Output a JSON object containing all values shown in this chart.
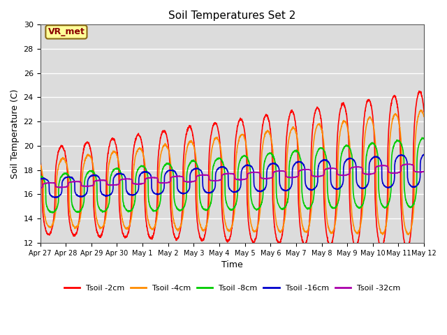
{
  "title": "Soil Temperatures Set 2",
  "xlabel": "Time",
  "ylabel": "Soil Temperature (C)",
  "ylim": [
    12,
    30
  ],
  "yticks": [
    12,
    14,
    16,
    18,
    20,
    22,
    24,
    26,
    28,
    30
  ],
  "annotation_text": "VR_met",
  "annotation_color": "#8B0000",
  "annotation_bg": "#FFFF99",
  "annotation_border": "#8B6914",
  "plot_bg": "#DCDCDC",
  "grid_color": "#FFFFFF",
  "series": [
    {
      "label": "Tsoil -2cm",
      "color": "#FF0000",
      "lw": 1.2
    },
    {
      "label": "Tsoil -4cm",
      "color": "#FF8C00",
      "lw": 1.2
    },
    {
      "label": "Tsoil -8cm",
      "color": "#00CC00",
      "lw": 1.2
    },
    {
      "label": "Tsoil -16cm",
      "color": "#0000CC",
      "lw": 1.2
    },
    {
      "label": "Tsoil -32cm",
      "color": "#AA00AA",
      "lw": 1.2
    }
  ],
  "tick_labels": [
    "Apr 27",
    "Apr 28",
    "Apr 29",
    "Apr 30",
    "May 1",
    "May 2",
    "May 3",
    "May 4",
    "May 5",
    "May 6",
    "May 7",
    "May 8",
    "May 9",
    "May 10",
    "May 11",
    "May 12"
  ],
  "n_days": 15,
  "points_per_day": 144
}
